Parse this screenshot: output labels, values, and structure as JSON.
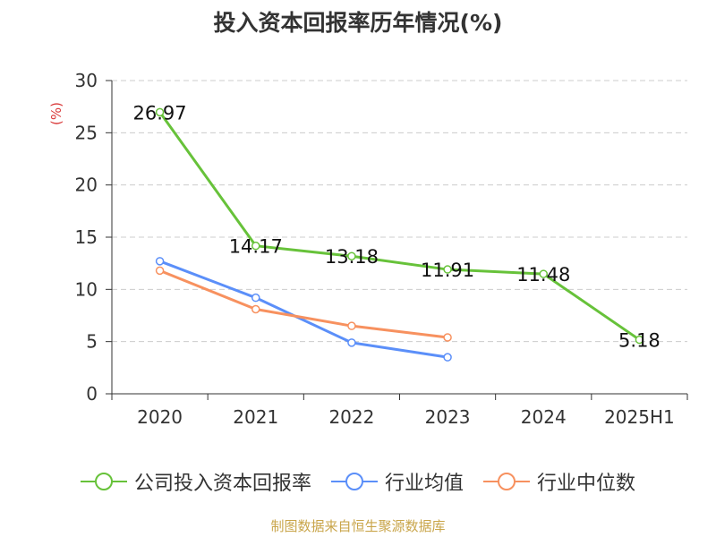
{
  "chart_data": {
    "type": "line",
    "title": "投入资本回报率历年情况(%)",
    "ylabel": "(%)",
    "categories": [
      "2020",
      "2021",
      "2022",
      "2023",
      "2024",
      "2025H1"
    ],
    "ylim": [
      0,
      30
    ],
    "yticks": [
      0,
      5,
      10,
      15,
      20,
      25,
      30
    ],
    "grid": "horizontal-dashed",
    "legend_position": "bottom",
    "series": [
      {
        "name": "公司投入资本回报率",
        "color": "#67c23a",
        "values": [
          26.97,
          14.17,
          13.18,
          11.91,
          11.48,
          5.18
        ],
        "labels": [
          "26.97",
          "14.17",
          "13.18",
          "11.91",
          "11.48",
          "5.18"
        ]
      },
      {
        "name": "行业均值",
        "color": "#5b8ff9",
        "values": [
          12.7,
          9.2,
          4.9,
          3.5,
          null,
          null
        ]
      },
      {
        "name": "行业中位数",
        "color": "#f7915f",
        "values": [
          11.8,
          8.1,
          6.5,
          5.4,
          null,
          null
        ]
      }
    ]
  },
  "source_note": "制图数据来自恒生聚源数据库"
}
